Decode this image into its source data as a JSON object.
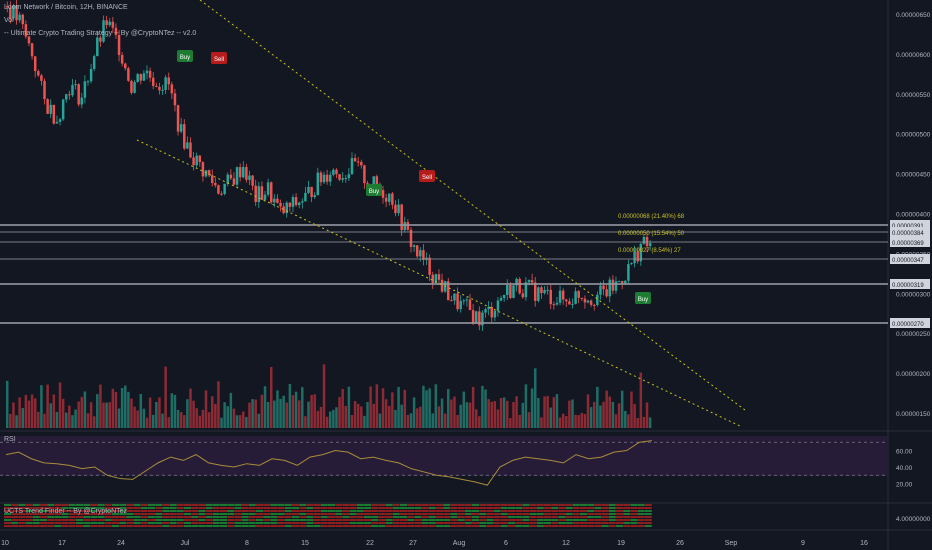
{
  "header": {
    "title": "Loom Network / Bitcoin, 12H, BINANCE",
    "vol_label": "Vol",
    "strategy_label": "-- Ultimate Crypto Trading Strategy -- By @CryptoNTez -- v2.0"
  },
  "panes": {
    "rsi_label": "RSI",
    "trend_label": "UCTS Trend Finder -- By @CryptoNTez"
  },
  "price_axis": {
    "ticks": [
      "0.00000650",
      "0.00000600",
      "0.00000550",
      "0.00000500",
      "0.00000450",
      "0.00000400",
      "0.00000350",
      "0.00000300",
      "0.00000250",
      "0.00000200",
      "0.00000150"
    ],
    "level_tags": [
      "0.00000391",
      "0.00000384",
      "0.00000369",
      "0.00000347",
      "0.00000319",
      "0.00000270"
    ]
  },
  "rsi_axis": {
    "ticks": [
      "60.00",
      "40.00",
      "20.00"
    ]
  },
  "trend_axis": {
    "ticks": [
      "4.00000000"
    ]
  },
  "time_axis": {
    "ticks": [
      "10",
      "17",
      "24",
      "Jul",
      "8",
      "15",
      "22",
      "27",
      "Aug",
      "6",
      "12",
      "19",
      "26",
      "Sep",
      "9",
      "16"
    ]
  },
  "signals": [
    {
      "label": "Buy",
      "type": "buy"
    },
    {
      "label": "Sell",
      "type": "sell"
    },
    {
      "label": "Buy",
      "type": "buy"
    },
    {
      "label": "Sell",
      "type": "sell"
    },
    {
      "label": "Buy",
      "type": "buy"
    }
  ],
  "targets": [
    "0.00000068 (21.40%) 68",
    "0.00000050 (15.54%) 50",
    "0.00000027 (8.54%) 27"
  ],
  "colors": {
    "background": "#131722",
    "up_candle": "#26a69a",
    "down_candle": "#ef5350",
    "up_volume": "#1f6e66",
    "down_volume": "#8e2a33",
    "trendline": "#c8c020",
    "rsi_line": "#a88c3c",
    "rsi_band": "#2a1d3a",
    "level_line": "#9598a1",
    "axis_text": "#b2b5be"
  },
  "chart_data": {
    "type": "candlestick",
    "symbol": "Loom Network / Bitcoin, 12H, BINANCE",
    "candle_closes": [
      6.6e-06,
      6.4e-06,
      6e-06,
      5.4e-06,
      5.2e-06,
      5.6e-06,
      5.45e-06,
      6e-06,
      6.4e-06,
      6.1e-06,
      5.6e-06,
      5.8e-06,
      5.65e-06,
      5.6e-06,
      5e-06,
      4.7e-06,
      4.5e-06,
      4.3e-06,
      4.4e-06,
      4.6e-06,
      4.2e-06,
      4.3e-06,
      4e-06,
      4.1e-06,
      4.2e-06,
      4.4e-06,
      4.55e-06,
      4.5e-06,
      4.6e-06,
      4.4e-06,
      4.3e-06,
      4.2e-06,
      3.8e-06,
      3.5e-06,
      3.3e-06,
      3.1e-06,
      2.9e-06,
      2.8e-06,
      2.68e-06,
      2.8e-06,
      3e-06,
      3.1e-06,
      3.05e-06,
      3e-06,
      2.95e-06,
      2.9e-06,
      3e-06,
      2.95e-06,
      3e-06,
      3.1e-06,
      3.3e-06,
      3.6e-06
    ],
    "levels": [
      3.91e-06,
      3.84e-06,
      3.69e-06,
      3.47e-06,
      3.19e-06,
      2.7e-06
    ],
    "ylim": [
      1.4e-06,
      6.6e-06
    ],
    "rsi_ylim": [
      0,
      80
    ],
    "rsi_levels": [
      70,
      30
    ],
    "rsi_values": [
      55,
      58,
      50,
      45,
      44,
      42,
      38,
      40,
      30,
      26,
      25,
      35,
      45,
      52,
      48,
      55,
      45,
      42,
      40,
      44,
      42,
      50,
      48,
      42,
      52,
      55,
      60,
      58,
      50,
      52,
      48,
      45,
      38,
      34,
      30,
      28,
      25,
      22,
      18,
      40,
      48,
      52,
      50,
      48,
      45,
      55,
      50,
      52,
      58,
      60,
      70,
      72
    ]
  }
}
